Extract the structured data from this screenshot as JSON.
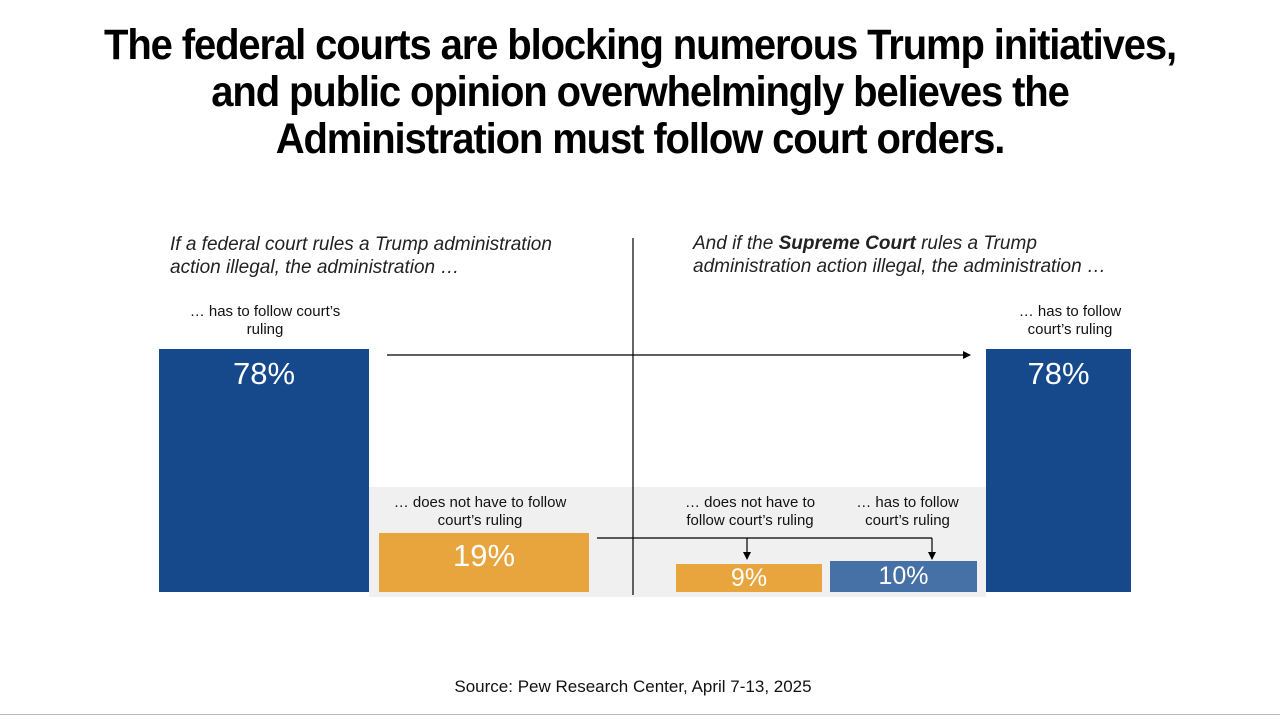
{
  "title": {
    "line1": "The federal courts are blocking numerous Trump initiatives,",
    "line2": "and public opinion overwhelmingly believes the",
    "line3": "Administration must follow court orders."
  },
  "left_panel": {
    "question_line1": "If a federal court rules a Trump administration",
    "question_line2": "action illegal, the administration …"
  },
  "right_panel": {
    "question_prefix": "And if the ",
    "question_bold": "Supreme Court",
    "question_suffix": " rules a Trump",
    "question_line2": "administration action illegal, the administration …"
  },
  "colors": {
    "dark_blue": "#15498C",
    "orange": "#E8A53E",
    "light_blue": "#4571A6",
    "shade": "#F0F0F0",
    "line": "#000000"
  },
  "chart_data": {
    "type": "bar",
    "panels": [
      {
        "question": "If a federal court rules a Trump administration action illegal, the administration …",
        "bars": [
          {
            "label_line1": "… has to follow court’s",
            "label_line2": "ruling",
            "value": 78,
            "value_label": "78%",
            "color": "dark_blue"
          },
          {
            "label_line1": "… does not have to follow",
            "label_line2": "court’s ruling",
            "value": 19,
            "value_label": "19%",
            "color": "orange"
          }
        ]
      },
      {
        "question": "And if the Supreme Court rules a Trump administration action illegal, the administration …",
        "bars": [
          {
            "label_line1": "… does not have to",
            "label_line2": "follow court’s ruling",
            "value": 9,
            "value_label": "9%",
            "color": "orange"
          },
          {
            "label_line1": "… has to follow",
            "label_line2": "court’s ruling",
            "value": 10,
            "value_label": "10%",
            "color": "light_blue"
          },
          {
            "label_line1": "… has to follow",
            "label_line2": "court’s ruling",
            "value": 78,
            "value_label": "78%",
            "color": "dark_blue"
          }
        ]
      }
    ]
  },
  "source": "Source: Pew Research Center, April 7-13, 2025"
}
